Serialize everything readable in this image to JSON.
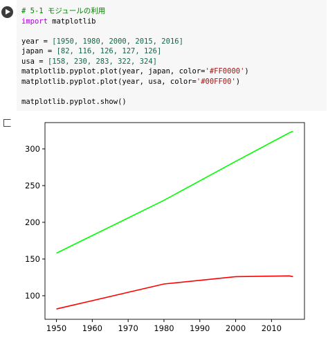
{
  "code_cell": {
    "blocks": [
      [
        [
          {
            "text": "# 5-1 モジュールの利用",
            "color": "#008000"
          }
        ],
        [
          {
            "text": "import",
            "color": "#af00db"
          },
          {
            "text": " matplotlib"
          }
        ]
      ],
      [
        [
          {
            "text": "year = "
          },
          {
            "text": "[1950, 1980, 2000, 2015, 2016]",
            "color": "#116644"
          }
        ],
        [
          {
            "text": "japan = "
          },
          {
            "text": "[82, 116, 126, 127, 126]",
            "color": "#116644"
          }
        ],
        [
          {
            "text": "usa = "
          },
          {
            "text": "[158, 230, 283, 322, 324]",
            "color": "#116644"
          }
        ],
        [
          {
            "text": "matplotlib.pyplot.plot(year, japan, color="
          },
          {
            "text": "'#FF0000'",
            "color": "#a31515"
          },
          {
            "text": ")"
          }
        ],
        [
          {
            "text": "matplotlib.pyplot.plot(year, usa, color="
          },
          {
            "text": "'#00FF00'",
            "color": "#a31515"
          },
          {
            "text": ")"
          }
        ]
      ],
      [
        [
          {
            "text": "matplotlib.pyplot.show()"
          }
        ]
      ]
    ]
  },
  "chart_data": {
    "type": "line",
    "x": [
      1950,
      1980,
      2000,
      2015,
      2016
    ],
    "series": [
      {
        "name": "japan",
        "color": "#FF0000",
        "values": [
          82,
          116,
          126,
          127,
          126
        ]
      },
      {
        "name": "usa",
        "color": "#00FF00",
        "values": [
          158,
          230,
          283,
          322,
          324
        ]
      }
    ],
    "xlim": [
      1946.8,
      2019.2
    ],
    "xticks": [
      1950,
      1960,
      1970,
      1980,
      1990,
      2000,
      2010
    ],
    "ylim": [
      67.9,
      335.8
    ],
    "yticks": [
      100,
      150,
      200,
      250,
      300
    ]
  }
}
